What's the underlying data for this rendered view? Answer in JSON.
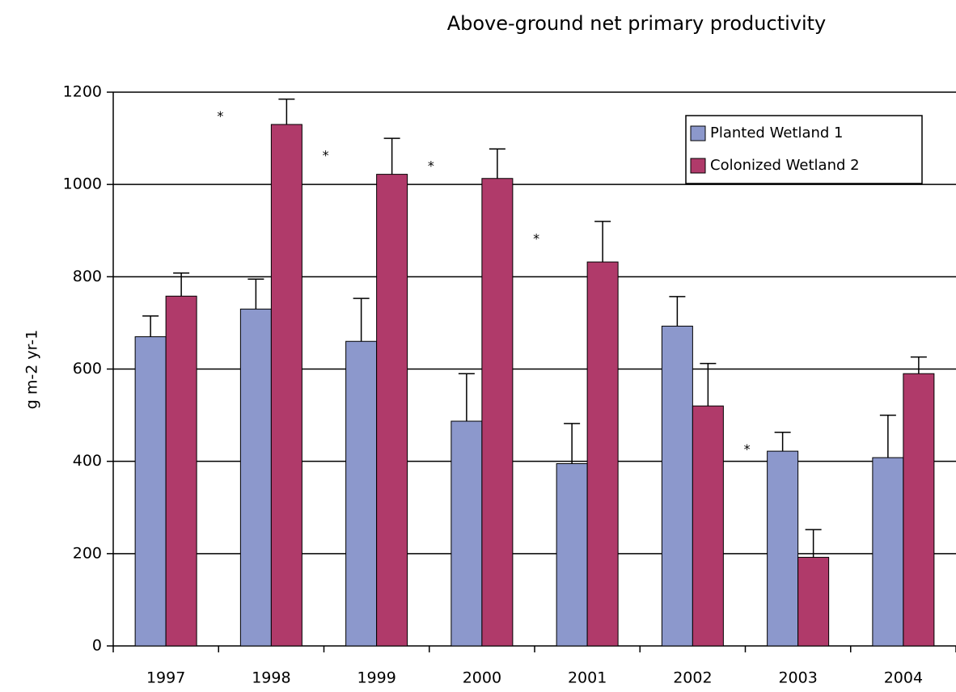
{
  "chart_data": {
    "type": "bar",
    "title": "Above-ground net primary productivity",
    "y_label": "g m-2 yr-1",
    "categories": [
      "1997",
      "1998",
      "1999",
      "2000",
      "2001",
      "2002",
      "2003",
      "2004"
    ],
    "series": [
      {
        "name": "Planted Wetland 1",
        "color": "#8c98cc",
        "values": [
          670,
          730,
          660,
          487,
          395,
          693,
          422,
          408
        ],
        "errors": [
          45,
          65,
          93,
          103,
          87,
          64,
          41,
          92
        ]
      },
      {
        "name": "Colonized Wetland 2",
        "color": "#b03a6a",
        "values": [
          758,
          1130,
          1022,
          1013,
          832,
          520,
          192,
          590
        ],
        "errors": [
          50,
          55,
          78,
          64,
          88,
          92,
          60,
          36
        ]
      }
    ],
    "significance_markers": [
      null,
      "*",
      "*",
      "*",
      "*",
      null,
      "*",
      null
    ],
    "ylim": [
      0,
      1200
    ],
    "yticks": [
      0,
      200,
      400,
      600,
      800,
      1000,
      1200
    ],
    "grid": true,
    "legend": "top-right"
  }
}
